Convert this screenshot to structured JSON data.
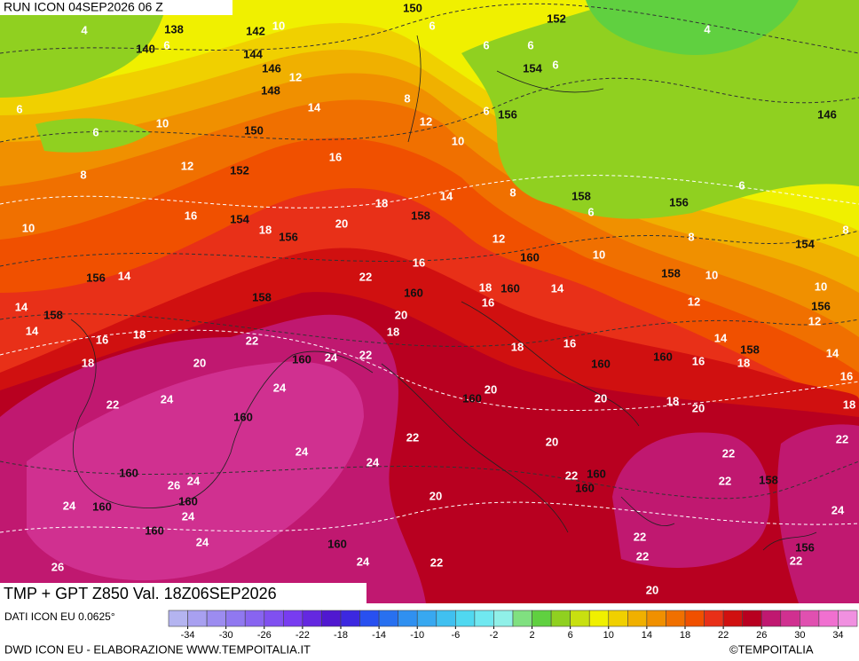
{
  "header": {
    "title": "RUN ICON 04SEP2026 06 Z"
  },
  "footer": {
    "title": "TMP + GPT Z850 Val. 18Z06SEP2026",
    "source": "DATI ICON EU 0.0625°",
    "credit": "DWD ICON EU - ELABORAZIONE WWW.TEMPOITALIA.IT",
    "copyright": "©TEMPOITALIA"
  },
  "colorbar": {
    "lim": [
      -36,
      36
    ],
    "ticks": [
      -34,
      -30,
      -26,
      -22,
      -18,
      -14,
      -10,
      -6,
      -2,
      2,
      6,
      10,
      14,
      18,
      22,
      26,
      30,
      34
    ],
    "colors": [
      "#b4b4f0",
      "#a8a0f0",
      "#9c8cf0",
      "#9078f0",
      "#8864f0",
      "#8050f0",
      "#783cf0",
      "#6428e0",
      "#5018d0",
      "#3c28e0",
      "#2850f0",
      "#2870f0",
      "#3090f0",
      "#38a8f0",
      "#40c0f0",
      "#50d8f0",
      "#70e8f0",
      "#90f0e8",
      "#80e080",
      "#60d040",
      "#90d020",
      "#c8e010",
      "#f0f000",
      "#f0d000",
      "#f0b000",
      "#f09000",
      "#f07000",
      "#f05000",
      "#e83018",
      "#d01010",
      "#b80020",
      "#c01870",
      "#d03090",
      "#e050b0",
      "#f070d0",
      "#f090e0"
    ]
  },
  "map": {
    "geopotential_labels": [
      150,
      152,
      138,
      142,
      140,
      144,
      146,
      154,
      148,
      156,
      146,
      150,
      152,
      158,
      154,
      156,
      158,
      156,
      154,
      160,
      156,
      160,
      160,
      158,
      158,
      158,
      156,
      158,
      160,
      160,
      160,
      160,
      160,
      160,
      160,
      160,
      158,
      160,
      160,
      160,
      160,
      156
    ],
    "temperature_labels": [
      4,
      10,
      6,
      6,
      6,
      6,
      4,
      12,
      6,
      6,
      6,
      10,
      14,
      8,
      12,
      6,
      10,
      8,
      12,
      16,
      18,
      14,
      8,
      6,
      6,
      16,
      10,
      18,
      20,
      12,
      8,
      8,
      10,
      16,
      14,
      22,
      18,
      14,
      10,
      10,
      14,
      16,
      12,
      12,
      14,
      20,
      18,
      18,
      16,
      22,
      18,
      16,
      14,
      14,
      18,
      20,
      24,
      22,
      16,
      18,
      16,
      24,
      24,
      20,
      20,
      18,
      20,
      18,
      22,
      22,
      20,
      22,
      24,
      24,
      22,
      22,
      22,
      26,
      24,
      24,
      24,
      20,
      24,
      24,
      22,
      26,
      24,
      22,
      22,
      22,
      20
    ]
  }
}
